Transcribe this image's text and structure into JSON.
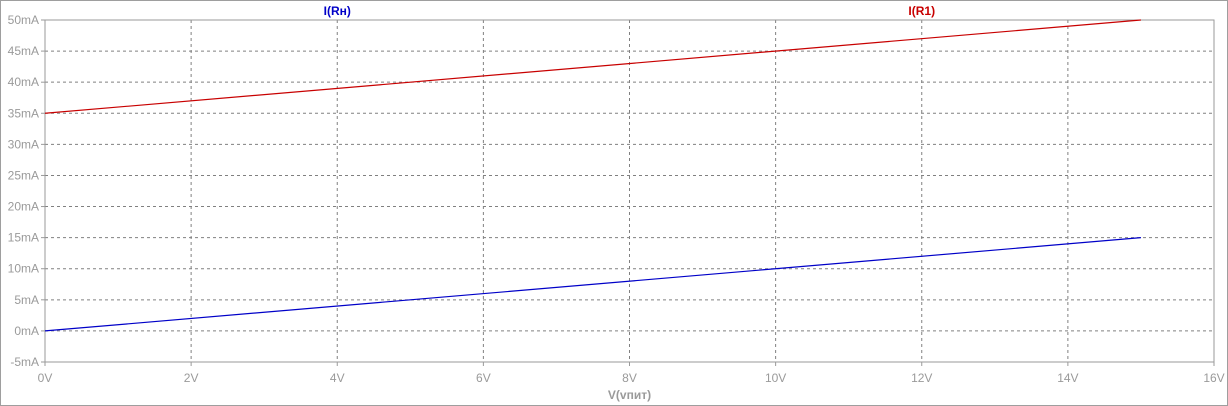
{
  "chart_data": {
    "type": "line",
    "title": "",
    "xlabel": "V(vпит)",
    "ylabel": "",
    "xlim": [
      0,
      16
    ],
    "ylim": [
      -5,
      50
    ],
    "x_ticks": [
      0,
      2,
      4,
      6,
      8,
      10,
      12,
      14,
      16
    ],
    "x_tick_labels": [
      "0V",
      "2V",
      "4V",
      "6V",
      "8V",
      "10V",
      "12V",
      "14V",
      "16V"
    ],
    "y_ticks": [
      -5,
      0,
      5,
      10,
      15,
      20,
      25,
      30,
      35,
      40,
      45,
      50
    ],
    "y_tick_labels": [
      "-5mA",
      "0mA",
      "5mA",
      "10mA",
      "15mA",
      "20mA",
      "25mA",
      "30mA",
      "35mA",
      "40mA",
      "45mA",
      "50mA"
    ],
    "grid": true,
    "grid_style": "dashed",
    "series": [
      {
        "name": "I(Rн)",
        "color": "#0000c8",
        "x": [
          0,
          15
        ],
        "y": [
          0,
          15
        ],
        "label_x": 4
      },
      {
        "name": "I(R1)",
        "color": "#c80000",
        "x": [
          0,
          15
        ],
        "y": [
          35,
          50
        ],
        "label_x": 12
      }
    ],
    "colors": {
      "axis": "#9a9a9a",
      "grid": "#808080",
      "frame": "#9e9e9e"
    }
  }
}
